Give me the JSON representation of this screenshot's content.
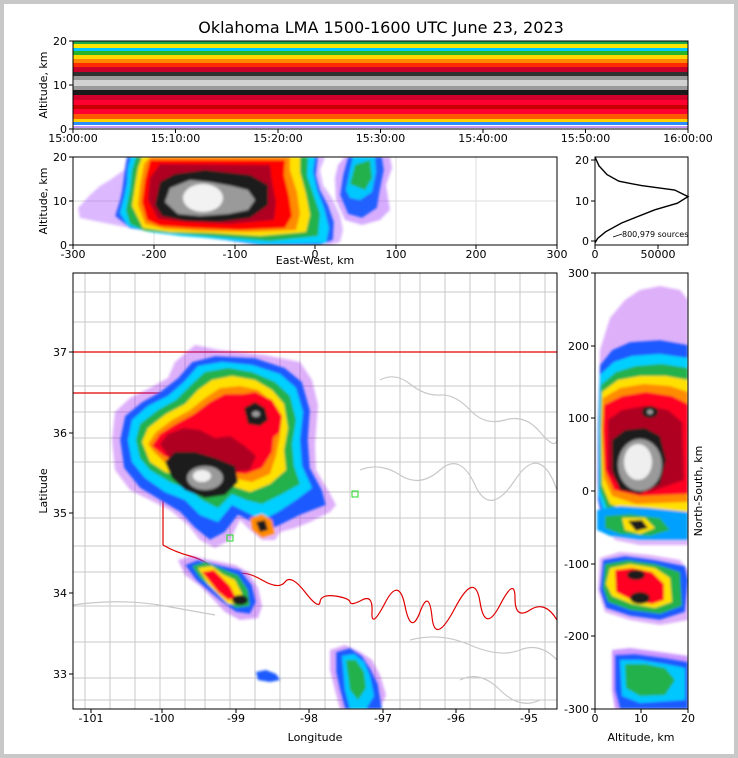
{
  "title": "Oklahoma LMA 1500-1600 UTC June 23, 2023",
  "chart_data": [
    {
      "id": "time-height",
      "type": "heatmap",
      "ylabel": "Altitude, km",
      "ylim": [
        0,
        20
      ],
      "yticks": [
        "0",
        "10",
        "20"
      ],
      "xticks": [
        "15:00:00",
        "15:10:00",
        "15:20:00",
        "15:30:00",
        "15:40:00",
        "15:50:00",
        "16:00:00"
      ]
    },
    {
      "id": "east-west-altitude",
      "type": "heatmap",
      "xlabel": "East-West, km",
      "ylabel": "Altitude, km",
      "xlim": [
        -300,
        300
      ],
      "ylim": [
        0,
        20
      ],
      "xticks": [
        "-300",
        "-200",
        "-100",
        "0",
        "100",
        "200",
        "300"
      ],
      "yticks": [
        "0",
        "10",
        "20"
      ]
    },
    {
      "id": "altitude-histogram",
      "type": "line",
      "annotation": "800,979 sources",
      "xlim": [
        0,
        70000
      ],
      "ylim": [
        0,
        20
      ],
      "xticks": [
        "0",
        "50000"
      ],
      "yticks": [
        "0",
        "10",
        "20"
      ],
      "x": [
        0,
        2000,
        8000,
        20000,
        45000,
        62000,
        70000,
        60000,
        35000,
        18000,
        9000,
        3000,
        0
      ],
      "y": [
        0.5,
        1.5,
        3,
        5,
        8,
        9.5,
        11,
        12.5,
        13.5,
        14.5,
        16,
        18,
        20
      ]
    },
    {
      "id": "plan-view",
      "type": "heatmap",
      "xlabel": "Longitude",
      "ylabel": "Latitude",
      "xlim": [
        -101.2,
        -94.6
      ],
      "ylim": [
        32.6,
        38
      ],
      "xticks": [
        "-101",
        "-100",
        "-99",
        "-98",
        "-97",
        "-96",
        "-95"
      ],
      "yticks": [
        "33",
        "34",
        "35",
        "36",
        "37"
      ]
    },
    {
      "id": "north-south-altitude",
      "type": "heatmap",
      "xlabel": "Altitude, km",
      "ylabel": "North-South, km",
      "xlim": [
        0,
        20
      ],
      "ylim": [
        -300,
        300
      ],
      "xticks": [
        "0",
        "10",
        "20"
      ],
      "yticks": [
        "-300",
        "-200",
        "-100",
        "0",
        "100",
        "200",
        "300"
      ]
    }
  ]
}
